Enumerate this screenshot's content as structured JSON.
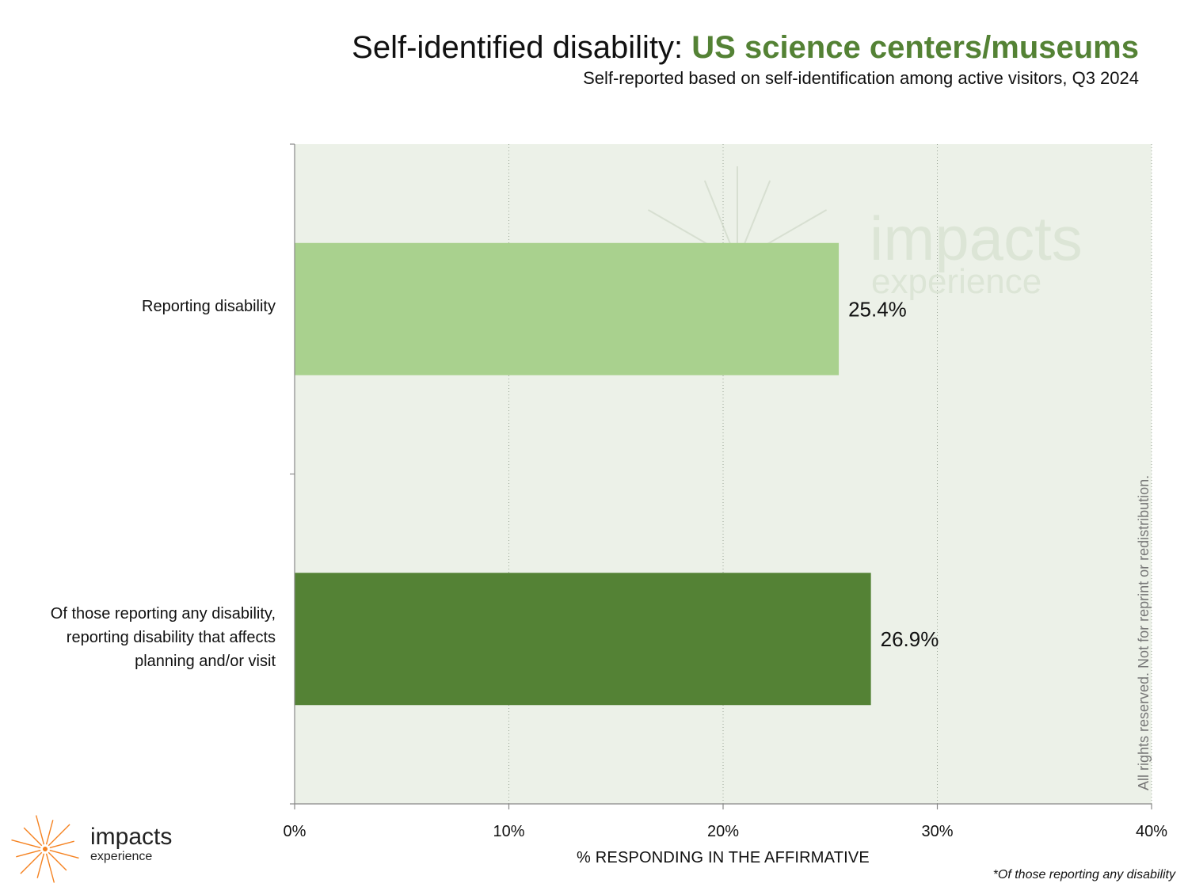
{
  "title": {
    "main": "Self-identified disability: ",
    "accent": "US science centers/museums"
  },
  "subtitle": "Self-reported based on self-identification among active visitors, Q3 2024",
  "watermark": {
    "line1": "impacts",
    "line2": "experience"
  },
  "rights_notice": "All rights reserved. Not for reprint or redistribution.",
  "footnote": "*Of those reporting any disability",
  "logo": {
    "line1": "impacts",
    "line2": "experience"
  },
  "colors": {
    "accent": "#548235",
    "bar_light": "#a9d18e",
    "bar_dark": "#548235",
    "plot_bg": "#ecf1e8",
    "logo_orange": "#f58220"
  },
  "chart_data": {
    "type": "bar",
    "orientation": "horizontal",
    "categories": [
      "Reporting disability",
      "Of those reporting any disability,\nreporting disability that affects\nplanning and/or visit"
    ],
    "values": [
      25.4,
      26.9
    ],
    "data_labels": [
      "25.4%",
      "26.9%"
    ],
    "xlim": [
      0,
      40
    ],
    "xticks": [
      0,
      10,
      20,
      30,
      40
    ],
    "xtick_labels": [
      "0%",
      "10%",
      "20%",
      "30%",
      "40%"
    ],
    "xlabel": "% RESPONDING IN THE AFFIRMATIVE",
    "grid": "vertical dotted",
    "legend": "none"
  }
}
